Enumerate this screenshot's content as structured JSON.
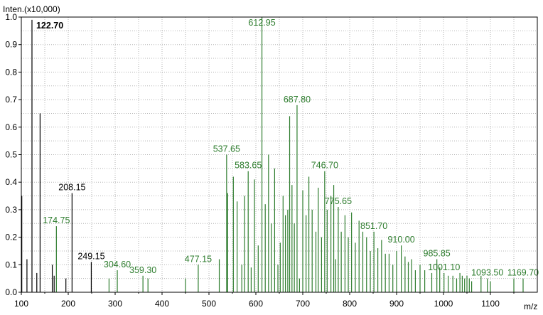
{
  "chart_data": {
    "type": "bar",
    "ylabel": "Inten.(x10,000)",
    "xlabel": "m/z",
    "xlim": [
      100,
      1200
    ],
    "ylim": [
      0,
      1.0
    ],
    "x_ticks": [
      "100",
      "200",
      "300",
      "400",
      "500",
      "600",
      "700",
      "800",
      "900",
      "1000",
      "1100"
    ],
    "y_ticks": [
      "0.0",
      "0.1",
      "0.2",
      "0.3",
      "0.4",
      "0.5",
      "0.6",
      "0.7",
      "0.8",
      "0.9",
      "1.0"
    ],
    "grid": true,
    "colors": {
      "low_mass": "#000000",
      "high_mass": "#2e7d2e",
      "grid": "#b4b4b4"
    },
    "series": [
      {
        "color": "#000000",
        "peaks": [
          {
            "x": 101,
            "y": 0.35
          },
          {
            "x": 112,
            "y": 0.12
          },
          {
            "x": 122.7,
            "y": 0.99
          },
          {
            "x": 133,
            "y": 0.07
          },
          {
            "x": 140,
            "y": 0.65
          },
          {
            "x": 166,
            "y": 0.1
          },
          {
            "x": 170,
            "y": 0.06
          },
          {
            "x": 195,
            "y": 0.05
          },
          {
            "x": 208.15,
            "y": 0.36
          },
          {
            "x": 249.15,
            "y": 0.11
          }
        ]
      },
      {
        "color": "#2e7d2e",
        "peaks": [
          {
            "x": 174.75,
            "y": 0.24
          },
          {
            "x": 287,
            "y": 0.05
          },
          {
            "x": 304.6,
            "y": 0.08
          },
          {
            "x": 359.3,
            "y": 0.06
          },
          {
            "x": 370,
            "y": 0.05
          },
          {
            "x": 450,
            "y": 0.05
          },
          {
            "x": 477.15,
            "y": 0.1
          },
          {
            "x": 522,
            "y": 0.12
          },
          {
            "x": 537.65,
            "y": 0.5
          },
          {
            "x": 540,
            "y": 0.36
          },
          {
            "x": 552,
            "y": 0.42
          },
          {
            "x": 560,
            "y": 0.33
          },
          {
            "x": 570,
            "y": 0.1
          },
          {
            "x": 576,
            "y": 0.35
          },
          {
            "x": 583.65,
            "y": 0.44
          },
          {
            "x": 590,
            "y": 0.09
          },
          {
            "x": 597,
            "y": 0.41
          },
          {
            "x": 605,
            "y": 0.17
          },
          {
            "x": 612.95,
            "y": 1.0
          },
          {
            "x": 620,
            "y": 0.32
          },
          {
            "x": 627,
            "y": 0.5
          },
          {
            "x": 633,
            "y": 0.25
          },
          {
            "x": 640,
            "y": 0.45
          },
          {
            "x": 647,
            "y": 0.1
          },
          {
            "x": 652,
            "y": 0.18
          },
          {
            "x": 658,
            "y": 0.35
          },
          {
            "x": 663,
            "y": 0.28
          },
          {
            "x": 668,
            "y": 0.3
          },
          {
            "x": 672,
            "y": 0.64
          },
          {
            "x": 677,
            "y": 0.39
          },
          {
            "x": 682,
            "y": 0.25
          },
          {
            "x": 687.8,
            "y": 0.68
          },
          {
            "x": 693,
            "y": 0.05
          },
          {
            "x": 700,
            "y": 0.37
          },
          {
            "x": 707,
            "y": 0.28
          },
          {
            "x": 713,
            "y": 0.42
          },
          {
            "x": 720,
            "y": 0.3
          },
          {
            "x": 728,
            "y": 0.22
          },
          {
            "x": 733,
            "y": 0.38
          },
          {
            "x": 740,
            "y": 0.2
          },
          {
            "x": 746.7,
            "y": 0.44
          },
          {
            "x": 752,
            "y": 0.3
          },
          {
            "x": 760,
            "y": 0.35
          },
          {
            "x": 766,
            "y": 0.39
          },
          {
            "x": 770,
            "y": 0.12
          },
          {
            "x": 775.65,
            "y": 0.31
          },
          {
            "x": 782,
            "y": 0.22
          },
          {
            "x": 790,
            "y": 0.28
          },
          {
            "x": 797,
            "y": 0.2
          },
          {
            "x": 804,
            "y": 0.29
          },
          {
            "x": 812,
            "y": 0.18
          },
          {
            "x": 820,
            "y": 0.26
          },
          {
            "x": 828,
            "y": 0.22
          },
          {
            "x": 836,
            "y": 0.2
          },
          {
            "x": 844,
            "y": 0.15
          },
          {
            "x": 851.7,
            "y": 0.22
          },
          {
            "x": 860,
            "y": 0.16
          },
          {
            "x": 868,
            "y": 0.19
          },
          {
            "x": 876,
            "y": 0.14
          },
          {
            "x": 884,
            "y": 0.14
          },
          {
            "x": 892,
            "y": 0.1
          },
          {
            "x": 900,
            "y": 0.15
          },
          {
            "x": 910,
            "y": 0.17
          },
          {
            "x": 918,
            "y": 0.13
          },
          {
            "x": 925,
            "y": 0.11
          },
          {
            "x": 932,
            "y": 0.12
          },
          {
            "x": 940,
            "y": 0.08
          },
          {
            "x": 950,
            "y": 0.1
          },
          {
            "x": 960,
            "y": 0.08
          },
          {
            "x": 975,
            "y": 0.07
          },
          {
            "x": 985.85,
            "y": 0.12
          },
          {
            "x": 992,
            "y": 0.09
          },
          {
            "x": 1001.1,
            "y": 0.07
          },
          {
            "x": 1010,
            "y": 0.06
          },
          {
            "x": 1020,
            "y": 0.06
          },
          {
            "x": 1028,
            "y": 0.05
          },
          {
            "x": 1035,
            "y": 0.07
          },
          {
            "x": 1040,
            "y": 0.06
          },
          {
            "x": 1045,
            "y": 0.05
          },
          {
            "x": 1050,
            "y": 0.06
          },
          {
            "x": 1055,
            "y": 0.05
          },
          {
            "x": 1060,
            "y": 0.04
          },
          {
            "x": 1080,
            "y": 0.06
          },
          {
            "x": 1093.5,
            "y": 0.05
          },
          {
            "x": 1100,
            "y": 0.04
          },
          {
            "x": 1150,
            "y": 0.05
          },
          {
            "x": 1169.7,
            "y": 0.05
          }
        ]
      }
    ],
    "annotations": [
      {
        "text": "122.70",
        "x": 122.7,
        "y": 0.99,
        "color": "#000000",
        "bold": true
      },
      {
        "text": "208.15",
        "x": 208.15,
        "y": 0.36,
        "color": "#000000",
        "bold": false
      },
      {
        "text": "249.15",
        "x": 249.15,
        "y": 0.11,
        "color": "#000000",
        "bold": false
      },
      {
        "text": "174.75",
        "x": 174.75,
        "y": 0.24,
        "color": "#2e7d2e",
        "bold": false
      },
      {
        "text": "304.60",
        "x": 304.6,
        "y": 0.08,
        "color": "#2e7d2e",
        "bold": false
      },
      {
        "text": "359.30",
        "x": 359.3,
        "y": 0.06,
        "color": "#2e7d2e",
        "bold": false
      },
      {
        "text": "477.15",
        "x": 477.15,
        "y": 0.1,
        "color": "#2e7d2e",
        "bold": false
      },
      {
        "text": "537.65",
        "x": 537.65,
        "y": 0.5,
        "color": "#2e7d2e",
        "bold": false
      },
      {
        "text": "583.65",
        "x": 583.65,
        "y": 0.44,
        "color": "#2e7d2e",
        "bold": false
      },
      {
        "text": "612.95",
        "x": 612.95,
        "y": 1.0,
        "color": "#2e7d2e",
        "bold": false
      },
      {
        "text": "687.80",
        "x": 687.8,
        "y": 0.68,
        "color": "#2e7d2e",
        "bold": false
      },
      {
        "text": "746.70",
        "x": 746.7,
        "y": 0.44,
        "color": "#2e7d2e",
        "bold": false
      },
      {
        "text": "775.65",
        "x": 775.65,
        "y": 0.31,
        "color": "#2e7d2e",
        "bold": false
      },
      {
        "text": "851.70",
        "x": 851.7,
        "y": 0.22,
        "color": "#2e7d2e",
        "bold": false
      },
      {
        "text": "910.00",
        "x": 910,
        "y": 0.17,
        "color": "#2e7d2e",
        "bold": false
      },
      {
        "text": "985.85",
        "x": 985.85,
        "y": 0.12,
        "color": "#2e7d2e",
        "bold": false
      },
      {
        "text": "1001.10",
        "x": 1001.1,
        "y": 0.07,
        "color": "#2e7d2e",
        "bold": false
      },
      {
        "text": "1093.50",
        "x": 1093.5,
        "y": 0.05,
        "color": "#2e7d2e",
        "bold": false
      },
      {
        "text": "1169.70",
        "x": 1169.7,
        "y": 0.05,
        "color": "#2e7d2e",
        "bold": false
      }
    ]
  }
}
